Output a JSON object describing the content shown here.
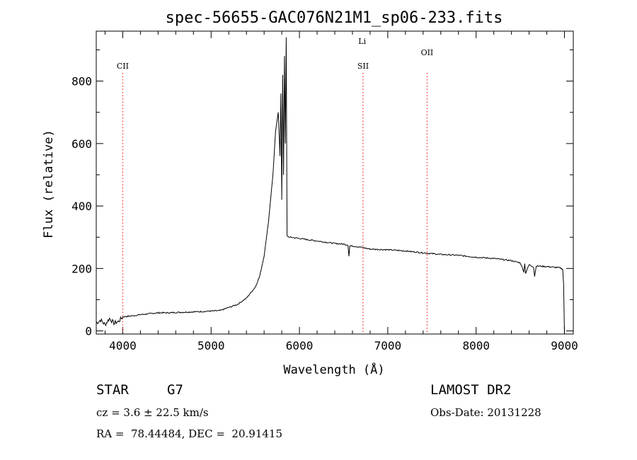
{
  "chart_data": {
    "type": "line",
    "title": "spec-56655-GAC076N21M1_sp06-233.fits",
    "xlabel": "Wavelength (Å)",
    "ylabel": "Flux (relative)",
    "xlim": [
      3700,
      9100
    ],
    "ylim": [
      -10,
      960
    ],
    "xticks": [
      4000,
      5000,
      6000,
      7000,
      8000,
      9000
    ],
    "yticks": [
      0,
      200,
      400,
      600,
      800
    ],
    "series": [
      {
        "name": "spectrum",
        "x": [
          3700,
          3750,
          3800,
          3850,
          3900,
          3950,
          4000,
          4100,
          4200,
          4300,
          4400,
          4500,
          4700,
          4900,
          5100,
          5300,
          5400,
          5500,
          5550,
          5600,
          5650,
          5700,
          5730,
          5760,
          5780,
          5790,
          5800,
          5810,
          5820,
          5830,
          5840,
          5850,
          5860,
          5880,
          5900,
          6000,
          6100,
          6200,
          6300,
          6400,
          6500,
          6550,
          6560,
          6570,
          6600,
          6700,
          6800,
          7000,
          7200,
          7400,
          7600,
          7800,
          8000,
          8200,
          8400,
          8500,
          8540,
          8550,
          8560,
          8600,
          8650,
          8662,
          8680,
          8800,
          8950,
          8980,
          8990,
          9000
        ],
        "y": [
          25,
          35,
          20,
          40,
          25,
          30,
          45,
          48,
          52,
          55,
          58,
          58,
          60,
          62,
          65,
          85,
          105,
          140,
          175,
          240,
          350,
          500,
          640,
          700,
          560,
          760,
          420,
          820,
          500,
          880,
          600,
          940,
          305,
          300,
          300,
          296,
          292,
          288,
          284,
          280,
          278,
          275,
          240,
          272,
          272,
          268,
          262,
          260,
          256,
          250,
          245,
          242,
          236,
          232,
          225,
          218,
          190,
          215,
          185,
          212,
          205,
          175,
          208,
          206,
          202,
          198,
          150,
          -10
        ]
      }
    ],
    "lines": [
      {
        "label": "CII",
        "x": 4000,
        "color": "#ff3030"
      },
      {
        "label": "Li",
        "x": 6710,
        "color": "#ff3030"
      },
      {
        "label": "SII",
        "x": 6720,
        "color": "#ff3030"
      },
      {
        "label": "OII",
        "x": 7445,
        "color": "#ff3030"
      }
    ]
  },
  "info": {
    "class_label": "STAR",
    "subclass": "G7",
    "survey": "LAMOST DR2",
    "cz": "cz = 3.6 ± 22.5 km/s",
    "obs_date": "Obs-Date: 20131228",
    "radec": "RA =  78.44484, DEC =  20.91415"
  }
}
